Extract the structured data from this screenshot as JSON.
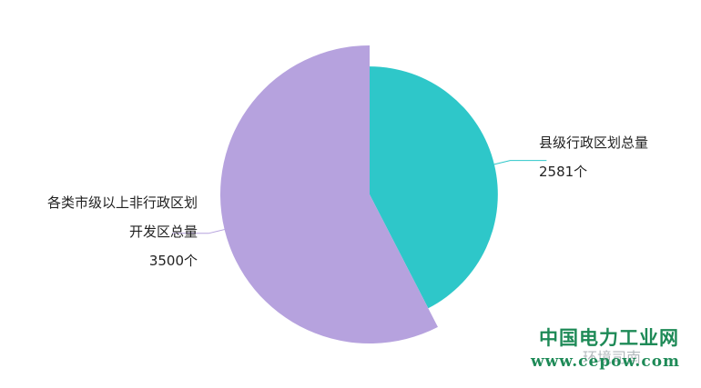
{
  "chart_data": {
    "type": "pie",
    "variant": "rose",
    "slices": [
      {
        "name": "县级行政区划总量",
        "value": 2581,
        "unit": "个",
        "color": "#2ec7c9"
      },
      {
        "name": "各类市级以上非行政区划开发区总量",
        "value": 3500,
        "unit": "个",
        "color": "#b6a2de"
      }
    ],
    "labels": {
      "right": {
        "line1": "县级行政区划总量",
        "line2": "2581个"
      },
      "left": {
        "line1": "各类市级以上非行政区划",
        "line2": "开发区总量",
        "line3": "3500个"
      }
    }
  },
  "watermark": {
    "title": "中国电力工业网",
    "sub": "环境司南",
    "url": "www.cepow.com"
  }
}
